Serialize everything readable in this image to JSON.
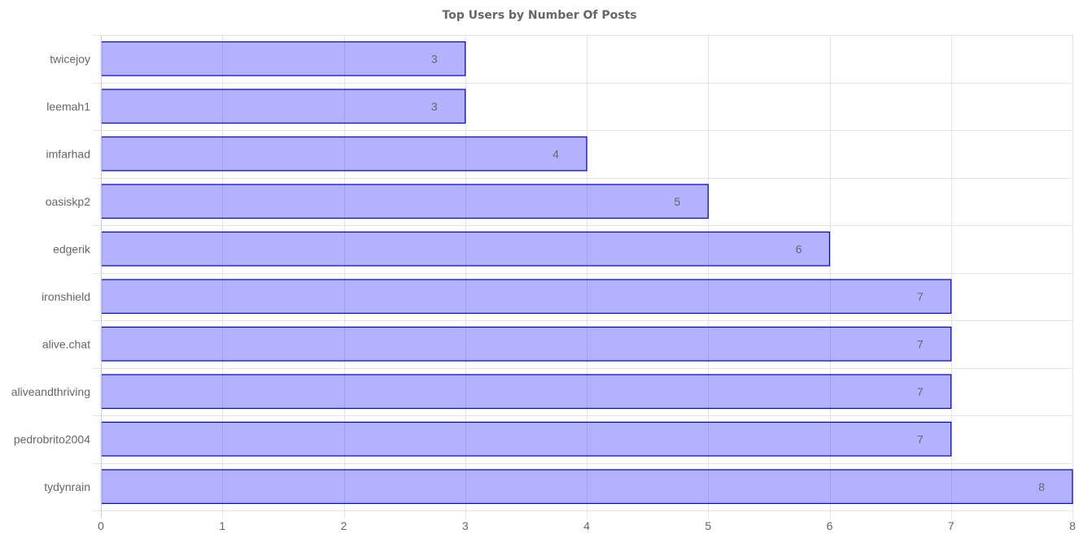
{
  "chart_data": {
    "type": "bar",
    "orientation": "horizontal",
    "title": "Top Users by Number Of Posts",
    "xlabel": "",
    "ylabel": "",
    "categories": [
      "twicejoy",
      "leemah1",
      "imfarhad",
      "oasiskp2",
      "edgerik",
      "ironshield",
      "alive.chat",
      "aliveandthriving",
      "pedrobrito2004",
      "tydynrain"
    ],
    "values": [
      3,
      3,
      4,
      5,
      6,
      7,
      7,
      7,
      7,
      8
    ],
    "xlim": [
      0,
      8
    ],
    "xticks": [
      0,
      1,
      2,
      3,
      4,
      5,
      6,
      7,
      8
    ],
    "grid": true,
    "legend": "none",
    "data_labels": true,
    "colors": {
      "bar_fill": "rgba(0, 0, 255, 0.3)",
      "bar_border": "#0000cc",
      "grid": "#e4e4e4",
      "text": "#666666"
    }
  }
}
